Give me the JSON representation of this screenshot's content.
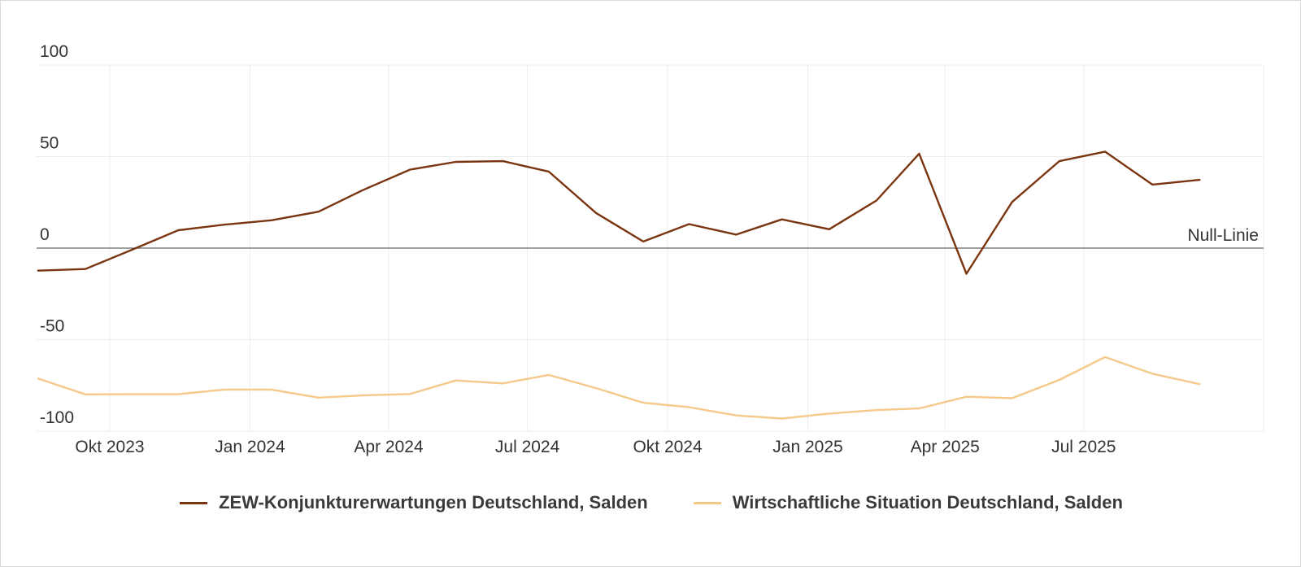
{
  "chart_data": {
    "type": "line",
    "ylim": [
      -100,
      100
    ],
    "y_ticks": [
      "100",
      "50",
      "0",
      "-50",
      "-100"
    ],
    "x_ticks": [
      {
        "label": "Okt 2023",
        "date": "2023-10-01"
      },
      {
        "label": "Jan 2024",
        "date": "2024-01-01"
      },
      {
        "label": "Apr 2024",
        "date": "2024-04-01"
      },
      {
        "label": "Jul 2024",
        "date": "2024-07-01"
      },
      {
        "label": "Okt 2024",
        "date": "2024-10-01"
      },
      {
        "label": "Jan 2025",
        "date": "2025-01-01"
      },
      {
        "label": "Apr 2025",
        "date": "2025-04-01"
      },
      {
        "label": "Jul 2025",
        "date": "2025-07-01"
      }
    ],
    "grid": true,
    "legend_position": "bottom",
    "reference_line": {
      "value": 0,
      "label": "Null-Linie"
    },
    "x": [
      "2023-08-15",
      "2023-09-15",
      "2023-10-15",
      "2023-11-15",
      "2023-12-15",
      "2024-01-15",
      "2024-02-15",
      "2024-03-15",
      "2024-04-15",
      "2024-05-15",
      "2024-06-15",
      "2024-07-15",
      "2024-08-15",
      "2024-09-15",
      "2024-10-15",
      "2024-11-15",
      "2024-12-15",
      "2025-01-15",
      "2025-02-15",
      "2025-03-15",
      "2025-04-15",
      "2025-05-15",
      "2025-06-15",
      "2025-07-15",
      "2025-08-15",
      "2025-09-15"
    ],
    "series": [
      {
        "name": "ZEW-Konjunkturerwartungen Deutschland, Salden",
        "color": "#7a3510",
        "values": [
          -12.3,
          -11.4,
          -1.1,
          9.8,
          12.8,
          15.2,
          19.9,
          31.7,
          42.9,
          47.1,
          47.5,
          41.8,
          19.2,
          3.6,
          13.1,
          7.4,
          15.7,
          10.3,
          26.0,
          51.6,
          -14.0,
          25.2,
          47.5,
          52.7,
          34.7,
          37.3
        ]
      },
      {
        "name": "Wirtschaftliche Situation Deutschland, Salden",
        "color": "#f5c98a",
        "values": [
          -71.3,
          -79.9,
          -79.8,
          -79.8,
          -77.3,
          -77.3,
          -81.7,
          -80.5,
          -79.7,
          -72.3,
          -73.9,
          -69.3,
          -76.5,
          -84.5,
          -86.9,
          -91.4,
          -93.1,
          -90.4,
          -88.5,
          -87.6,
          -81.2,
          -82.0,
          -72.0,
          -59.5,
          -68.6,
          -74.3
        ]
      }
    ]
  }
}
